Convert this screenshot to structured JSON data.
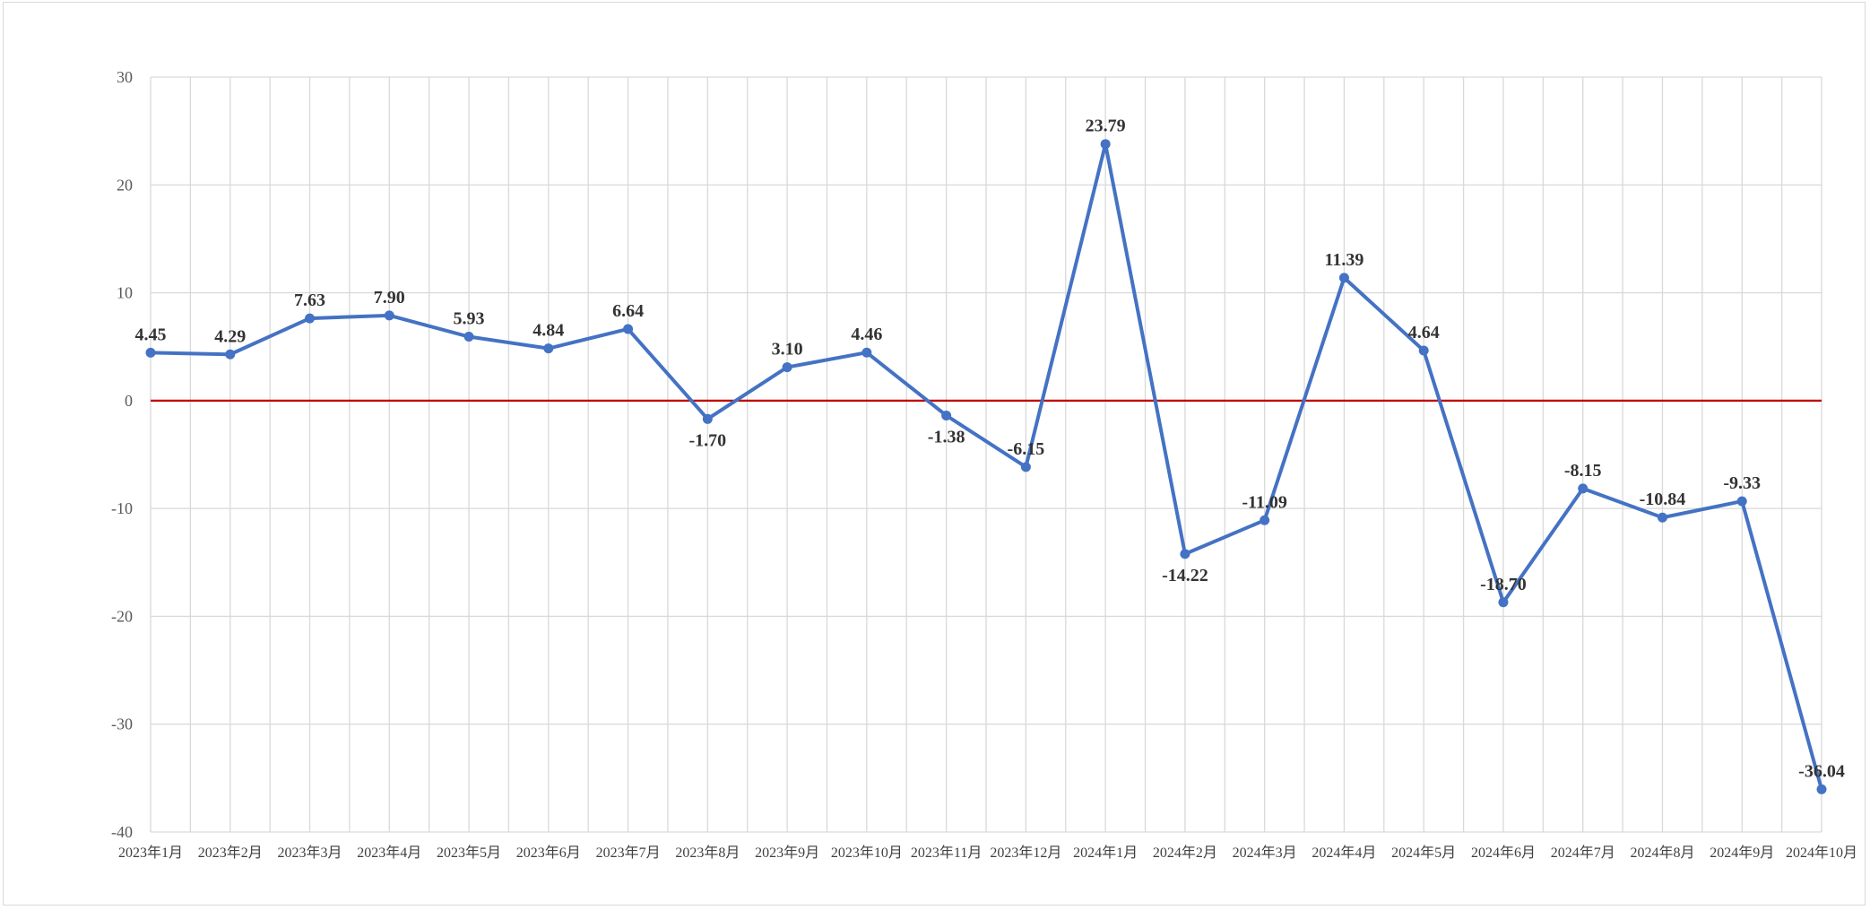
{
  "chart_data": {
    "type": "line",
    "title": "",
    "xlabel": "",
    "ylabel": "",
    "ylim": [
      -40,
      30
    ],
    "yticks": [
      30,
      20,
      10,
      0,
      -10,
      -20,
      -30,
      -40
    ],
    "grid": true,
    "reference_line": {
      "y": 0,
      "color": "#c00000"
    },
    "categories": [
      "2023年1月",
      "2023年2月",
      "2023年3月",
      "2023年4月",
      "2023年5月",
      "2023年6月",
      "2023年7月",
      "2023年8月",
      "2023年9月",
      "2023年10月",
      "2023年11月",
      "2023年12月",
      "2024年1月",
      "2024年2月",
      "2024年3月",
      "2024年4月",
      "2024年5月",
      "2024年6月",
      "2024年7月",
      "2024年8月",
      "2024年9月",
      "2024年10月"
    ],
    "series": [
      {
        "color": "#4472c4",
        "values": [
          4.45,
          4.29,
          7.63,
          7.9,
          5.93,
          4.84,
          6.64,
          -1.7,
          3.1,
          4.46,
          -1.38,
          -6.15,
          23.79,
          -14.22,
          -11.09,
          11.39,
          4.64,
          -18.7,
          -8.15,
          -10.84,
          -9.33,
          -36.04
        ],
        "data_labels": [
          "4.45",
          "4.29",
          "7.63",
          "7.90",
          "5.93",
          "4.84",
          "6.64",
          "-1.70",
          "3.10",
          "4.46",
          "-1.38",
          "-6.15",
          "23.79",
          "-14.22",
          "-11.09",
          "11.39",
          "4.64",
          "-18.70",
          "-8.15",
          "-10.84",
          "-9.33",
          "-36.04"
        ],
        "label_position": [
          "above",
          "above",
          "above",
          "above",
          "above",
          "above",
          "above",
          "below",
          "above",
          "above",
          "below",
          "above",
          "above",
          "below",
          "above",
          "above",
          "above",
          "above",
          "above",
          "above",
          "above",
          "above"
        ]
      }
    ]
  }
}
